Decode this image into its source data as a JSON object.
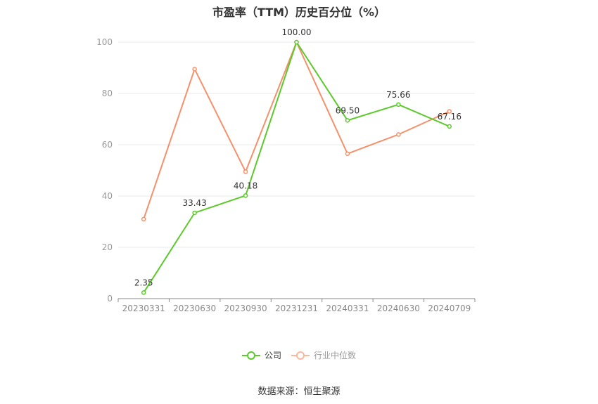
{
  "title": "市盈率（TTM）历史百分位（%）",
  "source": "数据来源：恒生聚源",
  "legend": [
    {
      "name": "公司",
      "color": "#5cc92b"
    },
    {
      "name": "行业中位数",
      "color": "#f4916b"
    }
  ],
  "chart_data": {
    "type": "line",
    "title": "市盈率（TTM）历史百分位（%）",
    "categories": [
      "20230331",
      "20230630",
      "20230930",
      "20231231",
      "20240331",
      "20240630",
      "20240709"
    ],
    "ylim": [
      0,
      100
    ],
    "yticks": [
      0,
      20,
      40,
      60,
      80,
      100
    ],
    "grid": true,
    "legend_position": "bottom",
    "series": [
      {
        "name": "公司",
        "color": "#5cc92b",
        "values": [
          2.35,
          33.43,
          40.18,
          100.0,
          69.5,
          75.66,
          67.16
        ],
        "labels": [
          "2.35",
          "33.43",
          "40.18",
          "100.00",
          "69.50",
          "75.66",
          "67.16"
        ]
      },
      {
        "name": "行业中位数",
        "color": "#f4916b",
        "values": [
          31,
          89.5,
          49.5,
          100.0,
          56.5,
          64,
          73
        ]
      }
    ]
  }
}
